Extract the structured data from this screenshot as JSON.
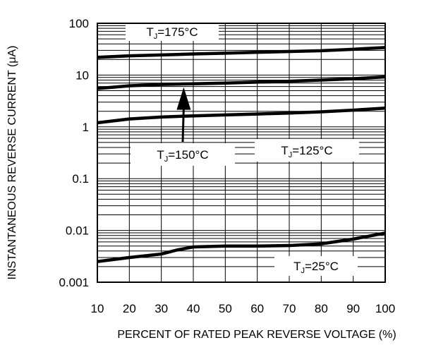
{
  "chart_data": {
    "type": "line",
    "title": "",
    "xlabel": "PERCENT OF RATED PEAK REVERSE VOLTAGE (%)",
    "ylabel": "INSTANTANEOUS REVERSE CURRENT (μA)",
    "x_scale": "linear",
    "y_scale": "log",
    "xlim": [
      10,
      100
    ],
    "ylim": [
      0.001,
      100
    ],
    "grid": true,
    "x_ticks": [
      "10",
      "20",
      "30",
      "40",
      "50",
      "60",
      "70",
      "80",
      "90",
      "100"
    ],
    "y_ticks": [
      "0.001",
      "0.01",
      "0.1",
      "1",
      "10",
      "100"
    ],
    "series": [
      {
        "name": "TJ=175°C",
        "label_main": "T",
        "label_sub": "J",
        "label_rest": "=175°C",
        "x": [
          10,
          20,
          30,
          40,
          50,
          60,
          70,
          80,
          90,
          100
        ],
        "values": [
          22,
          23.5,
          24.5,
          25.5,
          26.5,
          27.5,
          28.5,
          29.5,
          31.5,
          34
        ]
      },
      {
        "name": "TJ=150°C",
        "label_main": "T",
        "label_sub": "J",
        "label_rest": "=150°C",
        "x": [
          10,
          20,
          30,
          40,
          50,
          60,
          70,
          80,
          90,
          100
        ],
        "values": [
          5.5,
          6.2,
          6.6,
          6.8,
          7.0,
          7.3,
          7.6,
          8.0,
          8.5,
          9.2
        ]
      },
      {
        "name": "TJ=125°C",
        "label_main": "T",
        "label_sub": "J",
        "label_rest": "=125°C",
        "x": [
          10,
          20,
          30,
          40,
          50,
          60,
          70,
          80,
          90,
          100
        ],
        "values": [
          1.2,
          1.42,
          1.55,
          1.63,
          1.7,
          1.77,
          1.85,
          1.95,
          2.1,
          2.3
        ]
      },
      {
        "name": "TJ=25°C",
        "label_main": "T",
        "label_sub": "J",
        "label_rest": "=25°C",
        "x": [
          10,
          20,
          30,
          35,
          40,
          50,
          60,
          70,
          80,
          90,
          100
        ],
        "values": [
          0.0025,
          0.003,
          0.0035,
          0.0042,
          0.0048,
          0.005,
          0.005,
          0.0051,
          0.0055,
          0.0068,
          0.0089
        ]
      }
    ],
    "annotations": [
      {
        "type": "arrow",
        "from_label": "TJ=150°C",
        "points_to_x": 37,
        "points_to_y": 6.6
      }
    ]
  }
}
